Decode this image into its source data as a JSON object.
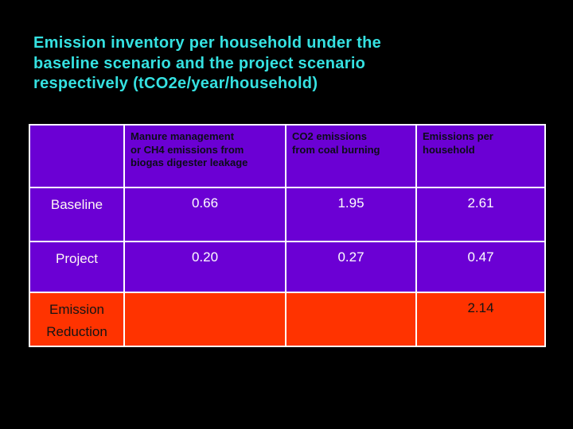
{
  "slide": {
    "background_color": "#000000",
    "title": {
      "color": "#35E1E1",
      "text": "Emission inventory per household under the baseline scenario and the project scenario respectively (tCO2e/year/household)",
      "lines": [
        "Emission inventory per household under the",
        "baseline scenario and the project scenario",
        "respectively (tCO2e/year/household)"
      ]
    },
    "table": {
      "border_color": "#FFFFFF",
      "purple_cell_color": "#6B00D4",
      "red_cell_color": "#FF3300",
      "header_text_color": "#0C0C18",
      "body_text_color": "#FFFFFF",
      "col_headers": [
        {
          "full": "Manure management or CH4 emissions from biogas digester leakage",
          "lines": [
            "Manure management",
            "or CH4 emissions from",
            "biogas digester leakage"
          ]
        },
        {
          "full": "CO2 emissions from coal burning",
          "lines": [
            "CO2 emissions",
            "from coal burning"
          ]
        },
        {
          "full": "Emissions per household",
          "lines": [
            "Emissions per",
            "household"
          ]
        }
      ],
      "rows": [
        {
          "label": "Baseline",
          "values": [
            "0.66",
            "1.95",
            "2.61"
          ],
          "highlighted": false
        },
        {
          "label": "Project",
          "values": [
            "0.20",
            "0.27",
            "0.47"
          ],
          "highlighted": false
        },
        {
          "label": "Emission Reduction",
          "values": [
            "",
            "",
            "2.14"
          ],
          "highlighted": true
        }
      ]
    }
  },
  "chart_data": {
    "type": "table",
    "title": "Emission inventory per household under the baseline scenario and the project scenario respectively (tCO2e/year/household)",
    "columns": [
      "",
      "Manure management or CH4 emissions from biogas digester leakage",
      "CO2 emissions from coal burning",
      "Emissions per household"
    ],
    "rows": [
      [
        "Baseline",
        0.66,
        1.95,
        2.61
      ],
      [
        "Project",
        0.2,
        0.27,
        0.47
      ],
      [
        "Emission Reduction",
        null,
        null,
        2.14
      ]
    ]
  }
}
